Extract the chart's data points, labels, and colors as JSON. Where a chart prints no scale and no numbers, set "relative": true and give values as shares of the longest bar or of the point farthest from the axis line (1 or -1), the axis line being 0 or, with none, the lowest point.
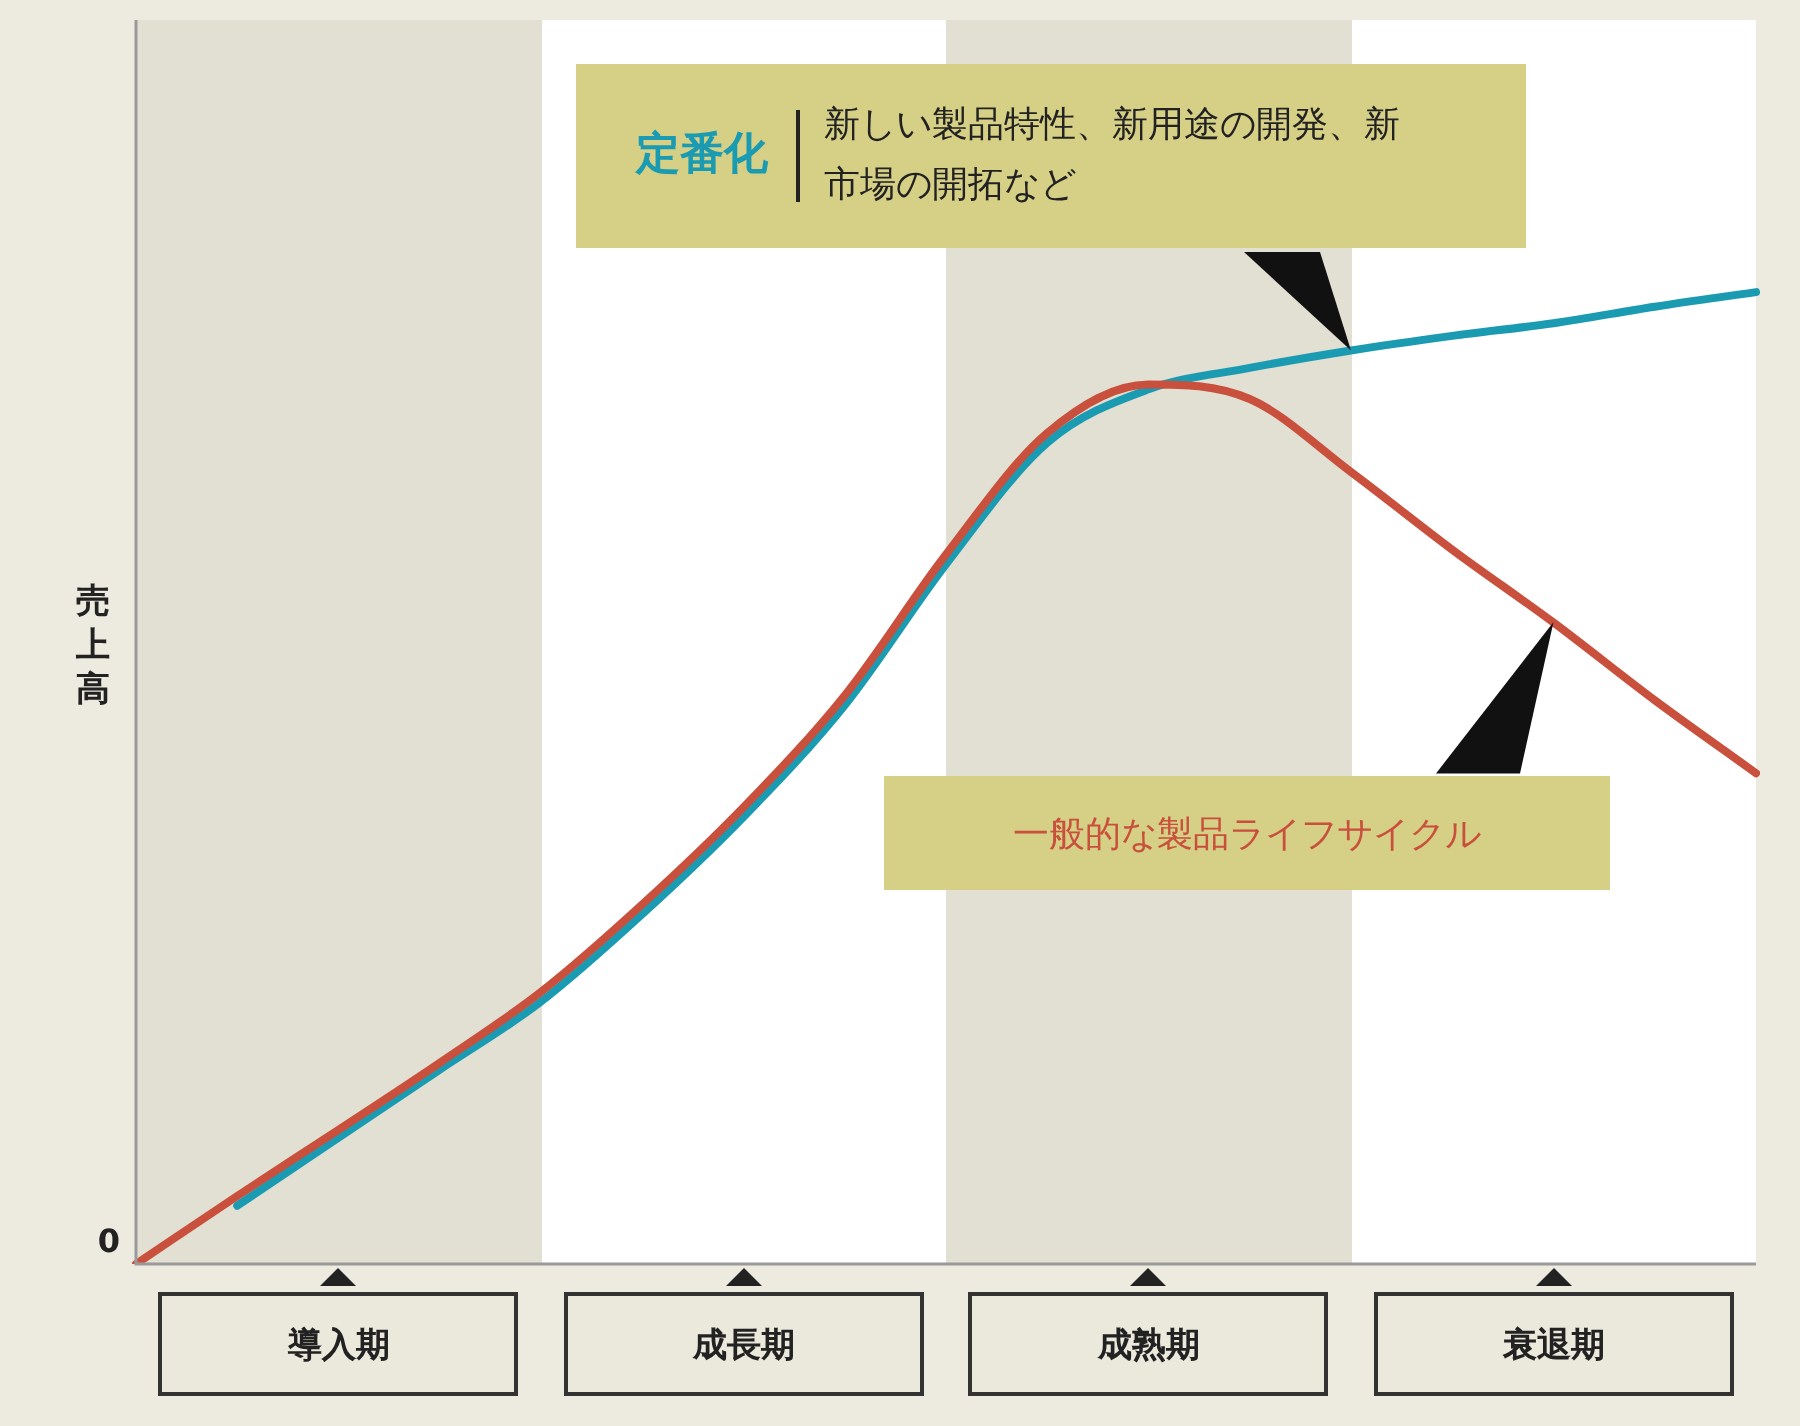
{
  "chart_data": {
    "type": "line",
    "relative": true,
    "ylabel": "売上高",
    "categories": [
      null,
      null,
      null,
      null,
      null,
      null,
      null,
      null,
      null,
      null,
      null,
      null,
      null,
      null,
      null,
      null,
      null
    ],
    "series": [
      {
        "name": "一般的な製品ライフサイクル",
        "color": "#c8503c",
        "values": [
          0,
          0.07,
          0.138,
          0.207,
          0.28,
          0.37,
          0.47,
          0.585,
          0.73,
          0.855,
          0.905,
          0.89,
          0.815,
          0.735,
          0.66,
          0.58,
          0.505
        ]
      },
      {
        "name": "定番化",
        "color": "#1b9bb2",
        "values": [
          null,
          0.06,
          0.13,
          0.2,
          0.27,
          0.36,
          0.46,
          0.575,
          0.72,
          0.845,
          0.9,
          0.922,
          0.94,
          0.955,
          0.968,
          0.985,
          1
        ]
      }
    ],
    "annotations": [
      "導入期",
      "成長期",
      "成熟期",
      "衰退期",
      "新しい製品特性、新用途の開発、新市場の開拓など",
      "0"
    ]
  }
}
